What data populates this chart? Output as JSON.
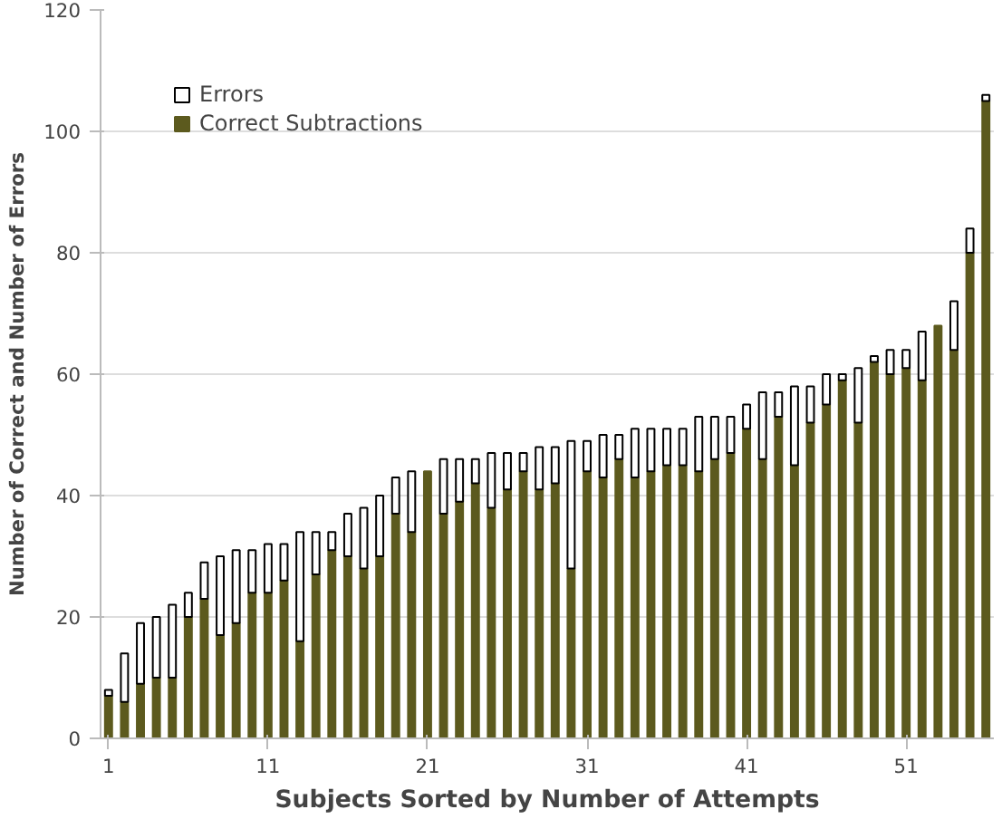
{
  "chart_data": {
    "type": "bar",
    "stacked": true,
    "xlabel": "Subjects Sorted by Number of Attempts",
    "ylabel": "Number of Correct and Number of Errors",
    "x": [
      1,
      2,
      3,
      4,
      5,
      6,
      7,
      8,
      9,
      10,
      11,
      12,
      13,
      14,
      15,
      16,
      17,
      18,
      19,
      20,
      21,
      22,
      23,
      24,
      25,
      26,
      27,
      28,
      29,
      30,
      31,
      32,
      33,
      34,
      35,
      36,
      37,
      38,
      39,
      40,
      41,
      42,
      43,
      44,
      45,
      46,
      47,
      48,
      49,
      50,
      51,
      52,
      53,
      54,
      55,
      56
    ],
    "series": [
      {
        "name": "Correct Subtractions",
        "color": "#5c5a1e",
        "values": [
          7,
          6,
          9,
          10,
          10,
          20,
          23,
          17,
          19,
          24,
          24,
          26,
          16,
          27,
          31,
          30,
          28,
          30,
          37,
          34,
          44,
          37,
          39,
          42,
          38,
          41,
          44,
          41,
          42,
          28,
          44,
          43,
          46,
          43,
          44,
          45,
          45,
          44,
          46,
          47,
          51,
          46,
          53,
          45,
          52,
          55,
          59,
          52,
          62,
          60,
          61,
          59,
          68,
          64,
          80,
          105
        ]
      },
      {
        "name": "Errors",
        "color": "#ffffff",
        "values": [
          1,
          8,
          10,
          10,
          12,
          4,
          6,
          13,
          12,
          7,
          8,
          6,
          18,
          7,
          3,
          7,
          10,
          10,
          6,
          10,
          0,
          9,
          7,
          4,
          9,
          6,
          3,
          7,
          6,
          21,
          5,
          7,
          4,
          8,
          7,
          6,
          6,
          9,
          7,
          6,
          4,
          11,
          4,
          13,
          6,
          5,
          1,
          9,
          1,
          4,
          3,
          8,
          0,
          8,
          4,
          1
        ]
      }
    ],
    "xlim": [
      0.5,
      56.5
    ],
    "xticks": [
      1,
      11,
      21,
      31,
      41,
      51
    ],
    "ylim": [
      0,
      120
    ],
    "yticks": [
      0,
      20,
      40,
      60,
      80,
      100,
      120
    ],
    "grid": "y",
    "legend": "top left"
  }
}
